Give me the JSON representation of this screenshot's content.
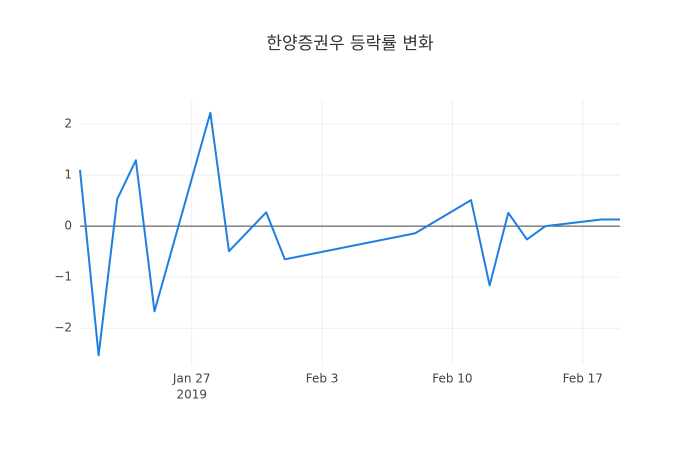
{
  "chart_data": {
    "type": "line",
    "title": "한양증권우 등락률 변화",
    "x": [
      "2019-01-21",
      "2019-01-22",
      "2019-01-23",
      "2019-01-24",
      "2019-01-25",
      "2019-01-28",
      "2019-01-29",
      "2019-01-31",
      "2019-02-01",
      "2019-02-08",
      "2019-02-11",
      "2019-02-12",
      "2019-02-13",
      "2019-02-14",
      "2019-02-15",
      "2019-02-18",
      "2019-02-19"
    ],
    "series": [
      {
        "name": "등락률",
        "color": "#1f7fe0",
        "values": [
          1.1,
          -2.53,
          0.53,
          1.29,
          -1.67,
          2.22,
          -0.49,
          0.27,
          -0.65,
          -0.14,
          0.51,
          -1.16,
          0.26,
          -0.26,
          0.0,
          0.13,
          0.13
        ]
      }
    ],
    "xlim": [
      "2019-01-21",
      "2019-02-19"
    ],
    "xticks": [
      {
        "value": "2019-01-27",
        "label": "Jan 27"
      },
      {
        "value": "2019-02-03",
        "label": "Feb 3"
      },
      {
        "value": "2019-02-10",
        "label": "Feb 10"
      },
      {
        "value": "2019-02-17",
        "label": "Feb 17"
      }
    ],
    "xaxis_year": "2019",
    "ylim": [
      -2.72,
      2.47
    ],
    "yticks": [
      {
        "value": -2,
        "label": "−2"
      },
      {
        "value": -1,
        "label": "−1"
      },
      0,
      1,
      2
    ],
    "grid": true,
    "zeroline": true
  }
}
